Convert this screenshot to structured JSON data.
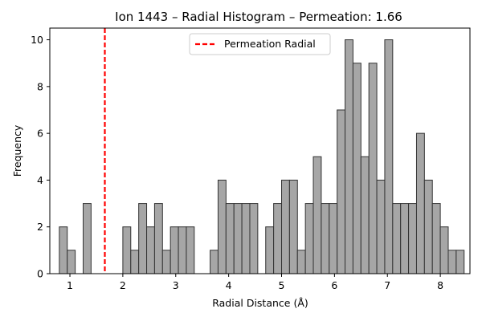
{
  "chart_data": {
    "type": "bar",
    "title": "Ion 1443 – Radial Histogram – Permeation: 1.66",
    "xlabel": "Radial Distance (Å)",
    "ylabel": "Frequency",
    "xlim": [
      0.62,
      8.56
    ],
    "ylim": [
      0,
      10.5
    ],
    "xticks": [
      1,
      2,
      3,
      4,
      5,
      6,
      7,
      8
    ],
    "yticks": [
      0,
      2,
      4,
      6,
      8,
      10
    ],
    "bin_start": 0.8,
    "bin_width": 0.15,
    "counts": [
      2,
      1,
      0,
      3,
      0,
      0,
      0,
      0,
      2,
      1,
      3,
      2,
      3,
      1,
      2,
      2,
      2,
      0,
      0,
      1,
      4,
      3,
      3,
      3,
      3,
      0,
      2,
      3,
      4,
      4,
      1,
      3,
      5,
      3,
      3,
      7,
      10,
      9,
      5,
      9,
      4,
      10,
      3,
      3,
      3,
      6,
      4,
      3,
      2,
      1,
      1
    ],
    "permeation_line": {
      "x": 1.66,
      "label": "Permeation Radial",
      "color": "#ff0000"
    },
    "bar_color": "#a6a6a6",
    "bar_edge_color": "#333333",
    "legend_position": "top-center",
    "grid": false
  }
}
